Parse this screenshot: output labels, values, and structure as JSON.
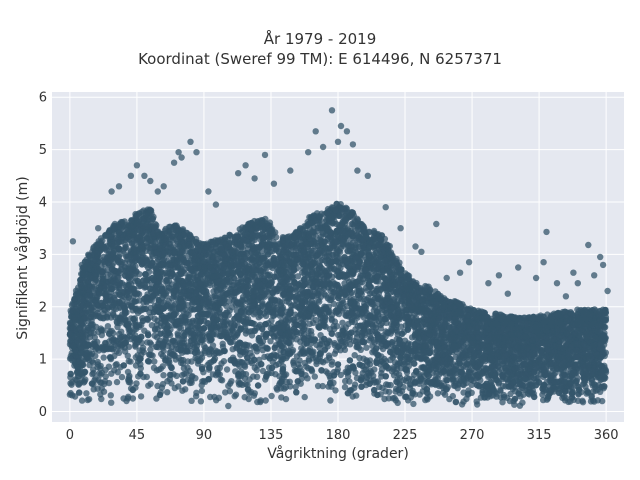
{
  "chart_data": {
    "type": "scatter",
    "title": "År 1979 - 2019",
    "subtitle": "Koordinat (Sweref 99 TM): E 614496, N 6257371",
    "xlabel": "Vågriktning (grader)",
    "ylabel": "Signifikant våghöjd (m)",
    "xlim": [
      -12,
      372
    ],
    "ylim": [
      -0.2,
      6.1
    ],
    "x_ticks": [
      0,
      45,
      90,
      135,
      180,
      225,
      270,
      315,
      360
    ],
    "y_ticks": [
      0,
      1,
      2,
      3,
      4,
      5,
      6
    ],
    "grid": true,
    "legend": "none",
    "marker_color": "#34566b",
    "background_color": "#e5e8f0",
    "envelope": {
      "direction_deg": [
        0,
        10,
        20,
        30,
        40,
        45,
        55,
        60,
        70,
        80,
        90,
        100,
        110,
        120,
        130,
        135,
        140,
        150,
        160,
        165,
        170,
        175,
        180,
        185,
        190,
        195,
        200,
        210,
        220,
        225,
        230,
        240,
        250,
        260,
        270,
        280,
        290,
        300,
        310,
        315,
        320,
        330,
        340,
        350,
        360
      ],
      "max_height_m": [
        1.9,
        2.9,
        3.3,
        3.6,
        3.7,
        3.8,
        3.9,
        3.4,
        3.6,
        3.4,
        3.2,
        3.3,
        3.4,
        3.6,
        3.7,
        3.6,
        3.3,
        3.4,
        3.7,
        3.8,
        3.8,
        3.9,
        4.0,
        3.9,
        3.8,
        3.6,
        3.5,
        3.4,
        2.9,
        2.7,
        2.5,
        2.4,
        2.2,
        2.1,
        1.95,
        1.9,
        1.85,
        1.8,
        1.8,
        1.85,
        1.85,
        1.9,
        1.95,
        1.95,
        1.95
      ]
    },
    "outliers": [
      {
        "x": 2,
        "y": 3.25
      },
      {
        "x": 8,
        "y": 2.8
      },
      {
        "x": 14,
        "y": 2.55
      },
      {
        "x": 19,
        "y": 3.5
      },
      {
        "x": 28,
        "y": 4.2
      },
      {
        "x": 33,
        "y": 4.3
      },
      {
        "x": 41,
        "y": 4.5
      },
      {
        "x": 45,
        "y": 4.7
      },
      {
        "x": 50,
        "y": 4.5
      },
      {
        "x": 54,
        "y": 4.4
      },
      {
        "x": 59,
        "y": 4.2
      },
      {
        "x": 63,
        "y": 4.3
      },
      {
        "x": 70,
        "y": 4.75
      },
      {
        "x": 73,
        "y": 4.95
      },
      {
        "x": 75,
        "y": 4.85
      },
      {
        "x": 81,
        "y": 5.15
      },
      {
        "x": 85,
        "y": 4.95
      },
      {
        "x": 93,
        "y": 4.2
      },
      {
        "x": 98,
        "y": 3.95
      },
      {
        "x": 113,
        "y": 4.55
      },
      {
        "x": 118,
        "y": 4.7
      },
      {
        "x": 124,
        "y": 4.45
      },
      {
        "x": 131,
        "y": 4.9
      },
      {
        "x": 137,
        "y": 4.35
      },
      {
        "x": 148,
        "y": 4.6
      },
      {
        "x": 160,
        "y": 4.95
      },
      {
        "x": 165,
        "y": 5.35
      },
      {
        "x": 170,
        "y": 5.05
      },
      {
        "x": 176,
        "y": 5.75
      },
      {
        "x": 180,
        "y": 5.15
      },
      {
        "x": 182,
        "y": 5.45
      },
      {
        "x": 186,
        "y": 5.35
      },
      {
        "x": 190,
        "y": 5.1
      },
      {
        "x": 193,
        "y": 4.6
      },
      {
        "x": 200,
        "y": 4.5
      },
      {
        "x": 212,
        "y": 3.9
      },
      {
        "x": 222,
        "y": 3.5
      },
      {
        "x": 232,
        "y": 3.15
      },
      {
        "x": 236,
        "y": 3.05
      },
      {
        "x": 246,
        "y": 3.58
      },
      {
        "x": 253,
        "y": 2.55
      },
      {
        "x": 262,
        "y": 2.65
      },
      {
        "x": 268,
        "y": 2.85
      },
      {
        "x": 281,
        "y": 2.45
      },
      {
        "x": 288,
        "y": 2.6
      },
      {
        "x": 294,
        "y": 2.25
      },
      {
        "x": 301,
        "y": 2.75
      },
      {
        "x": 313,
        "y": 2.55
      },
      {
        "x": 318,
        "y": 2.85
      },
      {
        "x": 320,
        "y": 3.43
      },
      {
        "x": 327,
        "y": 2.45
      },
      {
        "x": 333,
        "y": 2.2
      },
      {
        "x": 338,
        "y": 2.65
      },
      {
        "x": 341,
        "y": 2.45
      },
      {
        "x": 348,
        "y": 3.18
      },
      {
        "x": 352,
        "y": 2.6
      },
      {
        "x": 356,
        "y": 2.95
      },
      {
        "x": 358,
        "y": 2.8
      },
      {
        "x": 361,
        "y": 2.3
      }
    ]
  }
}
